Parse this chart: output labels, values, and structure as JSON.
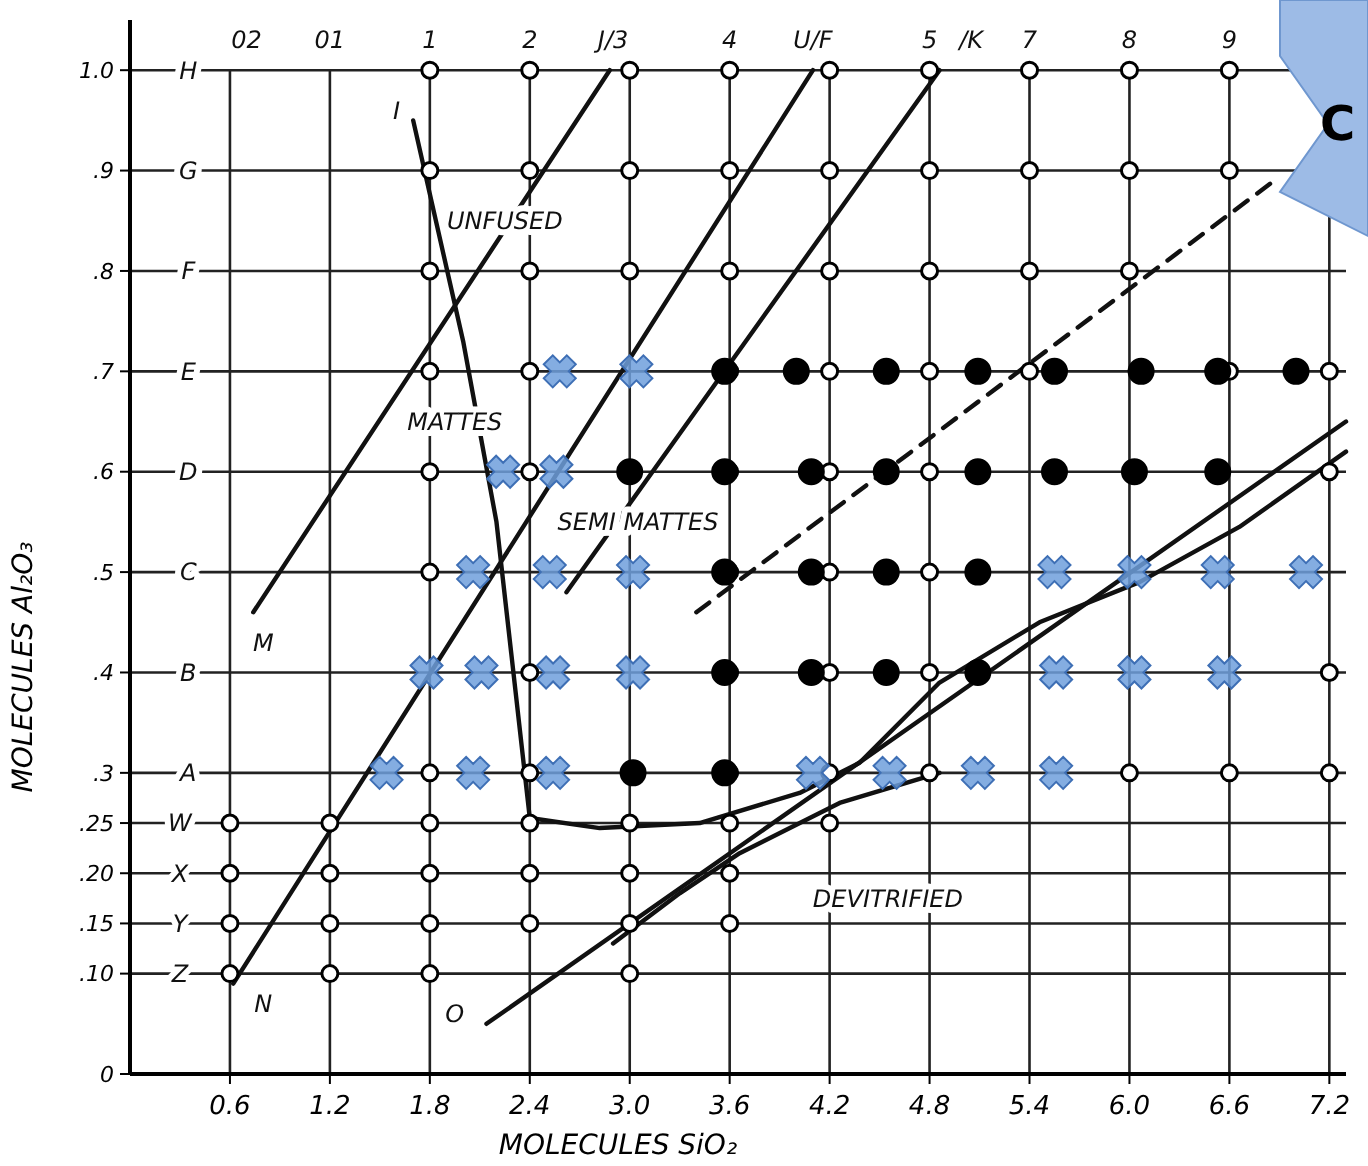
{
  "chart_data": {
    "type": "scatter",
    "xlabel": "MOLECULES SiO₂",
    "ylabel": "MOLECULES Al₂O₃",
    "xlim": [
      0,
      7.3
    ],
    "ylim": [
      0,
      1.05
    ],
    "xticks": [
      0.6,
      1.2,
      1.8,
      2.4,
      {
        "value": 3,
        "label": "3.0"
      },
      3.6,
      4.2,
      4.8,
      5.4,
      {
        "value": 6,
        "label": "6.0"
      },
      6.6,
      7.2
    ],
    "yticks": [
      {
        "value": 0,
        "label": "0"
      },
      {
        "value": 0.1,
        "label": ".10"
      },
      {
        "value": 0.15,
        "label": ".15"
      },
      {
        "value": 0.2,
        "label": ".20"
      },
      {
        "value": 0.25,
        "label": ".25"
      },
      {
        "value": 0.3,
        "label": ".3"
      },
      {
        "value": 0.4,
        "label": ".4"
      },
      {
        "value": 0.5,
        "label": ".5"
      },
      {
        "value": 0.6,
        "label": ".6"
      },
      {
        "value": 0.7,
        "label": ".7"
      },
      {
        "value": 0.8,
        "label": ".8"
      },
      {
        "value": 0.9,
        "label": ".9"
      },
      {
        "value": 1,
        "label": "1.0"
      }
    ],
    "grid": true,
    "series": [
      {
        "type": "line",
        "color": "#111111",
        "line_style": "solid",
        "x": [
          0.74,
          2.88
        ],
        "values": [
          0.46,
          1.0
        ]
      },
      {
        "type": "line",
        "color": "#111111",
        "line_style": "solid",
        "x": [
          0.62,
          4.1
        ],
        "values": [
          0.09,
          1.0
        ]
      },
      {
        "type": "line",
        "color": "#111111",
        "line_style": "solid",
        "x": [
          2.62,
          4.86
        ],
        "values": [
          0.48,
          1.0
        ]
      },
      {
        "type": "line",
        "color": "#111111",
        "line_style": "solid",
        "x": [
          2.14,
          7.3
        ],
        "values": [
          0.05,
          0.65
        ]
      },
      {
        "type": "line",
        "color": "#111111",
        "line_style": "solid",
        "x": [
          1.7,
          2.0,
          2.2,
          2.4,
          2.82,
          3.42,
          4.02,
          4.38,
          4.86,
          5.46,
          6.06,
          6.66,
          7.3
        ],
        "values": [
          0.95,
          0.73,
          0.55,
          0.255,
          0.245,
          0.25,
          0.28,
          0.31,
          0.39,
          0.45,
          0.49,
          0.545,
          0.62
        ]
      },
      {
        "type": "line",
        "color": "#111111",
        "line_style": "solid",
        "x": [
          2.9,
          3.3,
          3.66,
          4.26,
          4.86
        ],
        "values": [
          0.13,
          0.18,
          0.22,
          0.27,
          0.3
        ]
      },
      {
        "type": "line",
        "color": "#111111",
        "line_style": "dashed",
        "x": [
          3.4,
          6.87
        ],
        "values": [
          0.46,
          0.89
        ]
      },
      {
        "marker": "circle",
        "color": "#ffffff",
        "x": [
          1.8,
          2.4,
          3.0,
          3.6,
          4.2,
          4.8,
          5.4,
          6.0,
          6.6,
          1.8,
          2.4,
          3.0,
          3.6,
          4.2,
          4.8,
          5.4,
          6.0,
          6.6,
          1.8,
          2.4,
          3.0,
          3.6,
          4.2,
          4.8,
          5.4,
          6.0,
          1.8,
          2.4,
          3.6,
          4.2,
          4.8,
          5.4,
          6.6,
          7.2,
          1.8,
          2.4,
          3.6,
          4.2,
          4.8,
          7.2,
          1.8,
          3.6,
          4.2,
          4.8,
          2.4,
          3.6,
          4.2,
          4.8,
          7.2,
          1.8,
          2.4,
          3.6,
          4.2,
          4.8,
          6.0,
          6.6,
          7.2,
          0.6,
          1.2,
          1.8,
          2.4,
          3.0,
          3.6,
          4.2,
          0.6,
          1.2,
          1.8,
          2.4,
          3.0,
          3.6,
          0.6,
          1.2,
          1.8,
          2.4,
          3.0,
          3.6,
          0.6,
          1.2,
          1.8,
          3.0
        ],
        "values": [
          1,
          1,
          1,
          1,
          1,
          1,
          1,
          1,
          1,
          0.9,
          0.9,
          0.9,
          0.9,
          0.9,
          0.9,
          0.9,
          0.9,
          0.9,
          0.8,
          0.8,
          0.8,
          0.8,
          0.8,
          0.8,
          0.8,
          0.8,
          0.7,
          0.7,
          0.7,
          0.7,
          0.7,
          0.7,
          0.7,
          0.7,
          0.6,
          0.6,
          0.6,
          0.6,
          0.6,
          0.6,
          0.5,
          0.5,
          0.5,
          0.5,
          0.4,
          0.4,
          0.4,
          0.4,
          0.4,
          0.3,
          0.3,
          0.3,
          0.3,
          0.3,
          0.3,
          0.3,
          0.3,
          0.25,
          0.25,
          0.25,
          0.25,
          0.25,
          0.25,
          0.25,
          0.2,
          0.2,
          0.2,
          0.2,
          0.2,
          0.2,
          0.15,
          0.15,
          0.15,
          0.15,
          0.15,
          0.15,
          0.1,
          0.1,
          0.1,
          0.1
        ]
      },
      {
        "marker": "circle",
        "color": "#000000",
        "x": [
          3.57,
          4.0,
          4.54,
          5.09,
          5.55,
          6.07,
          6.53,
          7.0,
          3.0,
          3.57,
          4.09,
          4.54,
          5.09,
          5.55,
          6.03,
          6.53,
          3.57,
          4.09,
          4.54,
          5.09,
          3.57,
          4.09,
          4.54,
          5.09,
          3.02,
          3.57
        ],
        "values": [
          0.7,
          0.7,
          0.7,
          0.7,
          0.7,
          0.7,
          0.7,
          0.7,
          0.6,
          0.6,
          0.6,
          0.6,
          0.6,
          0.6,
          0.6,
          0.6,
          0.5,
          0.5,
          0.5,
          0.5,
          0.4,
          0.4,
          0.4,
          0.4,
          0.3,
          0.3
        ]
      },
      {
        "marker": "cross",
        "color": "#6f9fdc",
        "x": [
          2.58,
          3.04,
          2.24,
          2.56,
          2.06,
          2.52,
          3.02,
          5.55,
          6.03,
          6.53,
          7.06,
          1.78,
          2.11,
          2.54,
          3.02,
          5.56,
          6.03,
          6.57,
          1.54,
          2.06,
          2.54,
          4.1,
          4.56,
          5.09,
          5.56
        ],
        "values": [
          0.7,
          0.7,
          0.6,
          0.6,
          0.5,
          0.5,
          0.5,
          0.5,
          0.5,
          0.5,
          0.5,
          0.4,
          0.4,
          0.4,
          0.4,
          0.4,
          0.4,
          0.4,
          0.3,
          0.3,
          0.3,
          0.3,
          0.3,
          0.3,
          0.3
        ]
      }
    ],
    "annotations": [
      "H",
      "G",
      "F",
      "E",
      "D",
      "C",
      "B",
      "A",
      "W",
      "X",
      "Y",
      "Z",
      "02",
      "01",
      "1",
      "2",
      "J/3",
      "4",
      "U/F",
      "5",
      "/K",
      "7",
      "8",
      "9",
      "M",
      "N",
      "O",
      "I",
      "UNFUSED",
      "MATTES",
      "SEMI MATTES",
      "DEVITRIFIED",
      "C"
    ]
  }
}
